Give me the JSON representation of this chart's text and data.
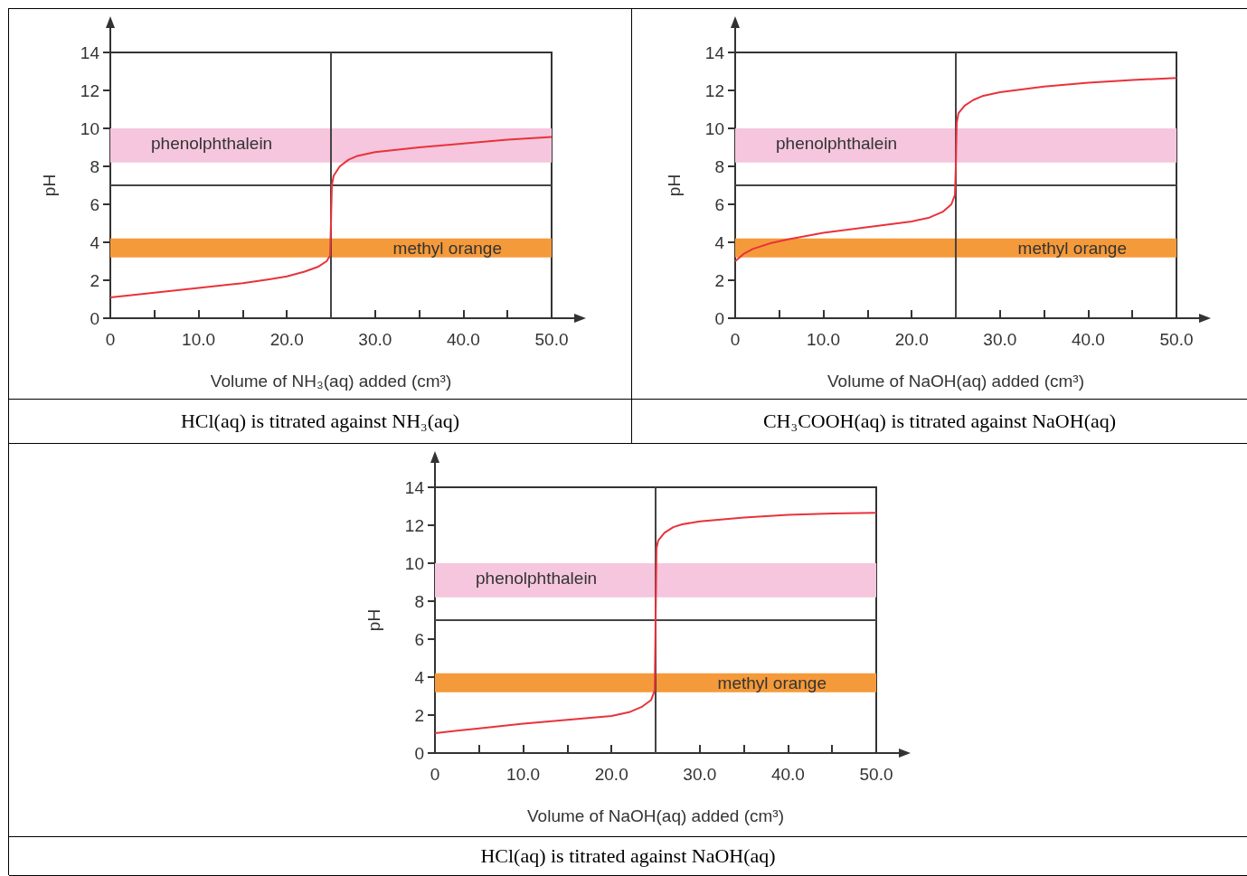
{
  "chart_data": [
    {
      "type": "line",
      "title": "HCl(aq) is titrated against NH₃(aq)",
      "xlabel": "Volume of NH₃(aq) added (cm³)",
      "ylabel": "pH",
      "color": "#e8333a",
      "marker": "none",
      "line_style": "solid",
      "x": [
        0,
        5,
        10,
        15,
        18,
        20,
        22,
        23.5,
        24.5,
        24.9,
        25,
        25.1,
        25.3,
        26,
        27,
        28,
        30,
        35,
        40,
        45,
        50
      ],
      "values": [
        1.1,
        1.35,
        1.6,
        1.85,
        2.05,
        2.2,
        2.45,
        2.7,
        3.0,
        3.3,
        5.0,
        7.0,
        7.5,
        8.0,
        8.35,
        8.55,
        8.75,
        9.0,
        9.2,
        9.4,
        9.55
      ],
      "xlim": [
        0,
        50
      ],
      "ylim": [
        0,
        14
      ],
      "xticks": [
        {
          "value": 0,
          "label": "0"
        },
        {
          "value": 5,
          "label": null
        },
        {
          "value": 10,
          "label": "10.0"
        },
        {
          "value": 15,
          "label": null
        },
        {
          "value": 20,
          "label": "20.0"
        },
        {
          "value": 25,
          "label": null
        },
        {
          "value": 30,
          "label": "30.0"
        },
        {
          "value": 35,
          "label": null
        },
        {
          "value": 40,
          "label": "40.0"
        },
        {
          "value": 45,
          "label": null
        },
        {
          "value": 50,
          "label": "50.0"
        }
      ],
      "yticks": [
        0,
        2,
        4,
        6,
        8,
        10,
        12,
        14
      ],
      "ref_lines": [
        {
          "axis": "y",
          "value": 7,
          "color": "#444444"
        },
        {
          "axis": "x",
          "value": 25,
          "color": "#444444"
        }
      ],
      "bands": [
        {
          "axis": "y",
          "from": 8.2,
          "to": 10,
          "label": "phenolphthalein",
          "color": "#f5c6dd"
        },
        {
          "axis": "y",
          "from": 3.2,
          "to": 4.2,
          "label": "methyl orange",
          "color": "#f59a3a"
        }
      ]
    },
    {
      "type": "line",
      "title": "CH₃COOH(aq) is titrated against NaOH(aq)",
      "xlabel": "Volume of NaOH(aq) added (cm³)",
      "ylabel": "pH",
      "color": "#e8333a",
      "marker": "none",
      "line_style": "solid",
      "x": [
        0,
        1,
        2,
        4,
        6,
        10,
        15,
        20,
        22,
        23.5,
        24.5,
        24.9,
        25,
        25.1,
        25.3,
        26,
        27,
        28,
        30,
        35,
        40,
        45,
        50
      ],
      "values": [
        3.0,
        3.4,
        3.65,
        3.95,
        4.15,
        4.5,
        4.8,
        5.1,
        5.3,
        5.6,
        6.0,
        6.5,
        8.0,
        10.3,
        10.8,
        11.2,
        11.5,
        11.7,
        11.9,
        12.2,
        12.4,
        12.55,
        12.65
      ],
      "xlim": [
        0,
        50
      ],
      "ylim": [
        0,
        14
      ],
      "xticks": [
        {
          "value": 0,
          "label": "0"
        },
        {
          "value": 5,
          "label": null
        },
        {
          "value": 10,
          "label": "10.0"
        },
        {
          "value": 15,
          "label": null
        },
        {
          "value": 20,
          "label": "20.0"
        },
        {
          "value": 25,
          "label": null
        },
        {
          "value": 30,
          "label": "30.0"
        },
        {
          "value": 35,
          "label": null
        },
        {
          "value": 40,
          "label": "40.0"
        },
        {
          "value": 45,
          "label": null
        },
        {
          "value": 50,
          "label": "50.0"
        }
      ],
      "yticks": [
        0,
        2,
        4,
        6,
        8,
        10,
        12,
        14
      ],
      "ref_lines": [
        {
          "axis": "y",
          "value": 7,
          "color": "#444444"
        },
        {
          "axis": "x",
          "value": 25,
          "color": "#444444"
        }
      ],
      "bands": [
        {
          "axis": "y",
          "from": 8.2,
          "to": 10,
          "label": "phenolphthalein",
          "color": "#f5c6dd"
        },
        {
          "axis": "y",
          "from": 3.2,
          "to": 4.2,
          "label": "methyl orange",
          "color": "#f59a3a"
        }
      ]
    },
    {
      "type": "line",
      "title": "HCl(aq) is titrated against NaOH(aq)",
      "xlabel": "Volume of NaOH(aq) added (cm³)",
      "ylabel": "pH",
      "color": "#e8333a",
      "marker": "none",
      "line_style": "solid",
      "x": [
        0,
        5,
        10,
        15,
        20,
        22,
        23.5,
        24.5,
        24.9,
        25,
        25.1,
        25.3,
        26,
        27,
        28,
        30,
        35,
        40,
        45,
        50
      ],
      "values": [
        1.05,
        1.3,
        1.55,
        1.75,
        1.95,
        2.15,
        2.45,
        2.8,
        3.3,
        7.0,
        10.8,
        11.2,
        11.6,
        11.9,
        12.05,
        12.2,
        12.4,
        12.55,
        12.62,
        12.65
      ],
      "xlim": [
        0,
        50
      ],
      "ylim": [
        0,
        14
      ],
      "xticks": [
        {
          "value": 0,
          "label": "0"
        },
        {
          "value": 5,
          "label": null
        },
        {
          "value": 10,
          "label": "10.0"
        },
        {
          "value": 15,
          "label": null
        },
        {
          "value": 20,
          "label": "20.0"
        },
        {
          "value": 25,
          "label": null
        },
        {
          "value": 30,
          "label": "30.0"
        },
        {
          "value": 35,
          "label": null
        },
        {
          "value": 40,
          "label": "40.0"
        },
        {
          "value": 45,
          "label": null
        },
        {
          "value": 50,
          "label": "50.0"
        }
      ],
      "yticks": [
        0,
        2,
        4,
        6,
        8,
        10,
        12,
        14
      ],
      "ref_lines": [
        {
          "axis": "y",
          "value": 7,
          "color": "#444444"
        },
        {
          "axis": "x",
          "value": 25,
          "color": "#444444"
        }
      ],
      "bands": [
        {
          "axis": "y",
          "from": 8.2,
          "to": 10,
          "label": "phenolphthalein",
          "color": "#f5c6dd"
        },
        {
          "axis": "y",
          "from": 3.2,
          "to": 4.2,
          "label": "methyl orange",
          "color": "#f59a3a"
        }
      ]
    }
  ]
}
